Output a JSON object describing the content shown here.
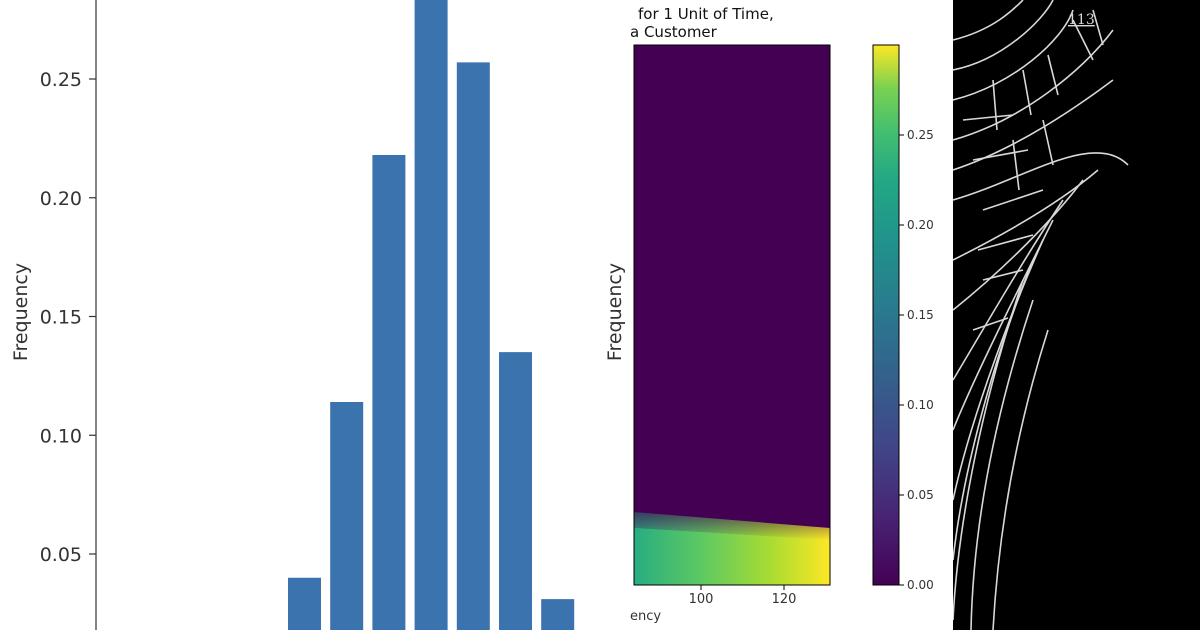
{
  "chart_data": [
    {
      "type": "bar",
      "ylabel": "Frequency",
      "ylim": [
        0.02,
        0.28
      ],
      "yticks": [
        "0.05",
        "0.10",
        "0.15",
        "0.20",
        "0.25"
      ],
      "values": [
        0.04,
        0.114,
        0.218,
        0.285,
        0.257,
        0.135,
        0.031
      ],
      "color": "#3b73af"
    },
    {
      "type": "heatmap",
      "title_lines": [
        "for 1 Unit of Time,",
        "a Customer"
      ],
      "ylabel": "Frequency",
      "xlabel": "ency",
      "xticks": [
        "100",
        "120"
      ],
      "colorbar": {
        "colormap": "viridis",
        "range": [
          0,
          0.3
        ],
        "ticks": [
          "0.00",
          "0.05",
          "0.10",
          "0.15",
          "0.20",
          "0.25"
        ]
      }
    }
  ],
  "image_panel": {
    "label": "113",
    "background": "#000000",
    "stroke": "#d8d8d8"
  }
}
